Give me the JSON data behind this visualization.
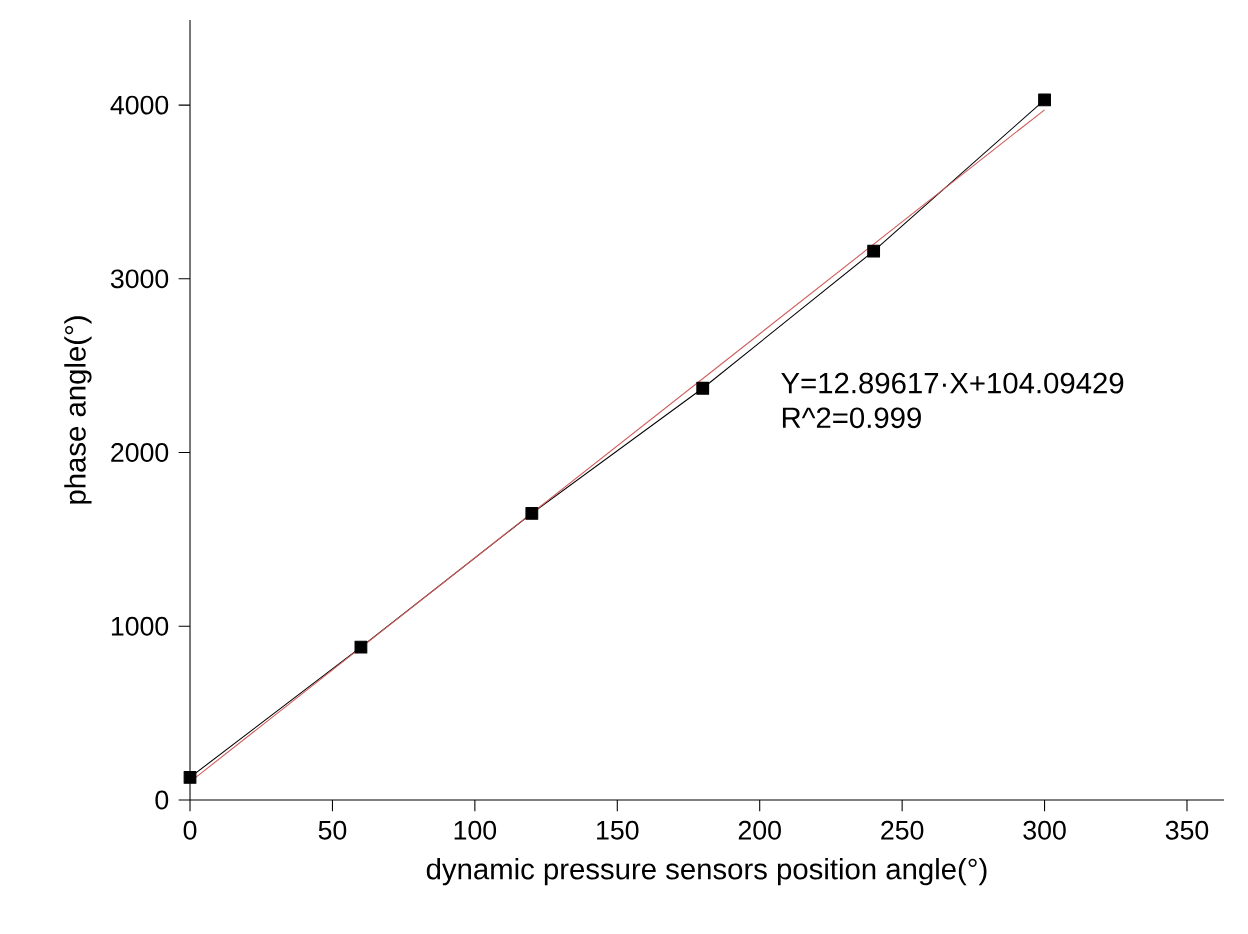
{
  "chart_data": {
    "type": "line",
    "xlabel": "dynamic pressure sensors position angle(°)",
    "ylabel": "phase angle(°)",
    "xlim": [
      0,
      363
    ],
    "ylim": [
      0,
      4490
    ],
    "xticks": [
      0,
      50,
      100,
      150,
      200,
      250,
      300,
      350
    ],
    "yticks": [
      0,
      1000,
      2000,
      3000,
      4000
    ],
    "grid": false,
    "series": [
      {
        "color": "#000000",
        "marker": "square",
        "x": [
          0,
          60,
          120,
          180,
          240,
          300
        ],
        "values": [
          130,
          880,
          1650,
          2370,
          3160,
          4030
        ]
      },
      {
        "color": "#d05a5a",
        "marker": "none",
        "x": [
          0,
          300
        ],
        "values": [
          104,
          3973
        ]
      }
    ],
    "annotations": [
      "Y=12.89617·X+104.09429",
      "R^2=0.999"
    ]
  }
}
